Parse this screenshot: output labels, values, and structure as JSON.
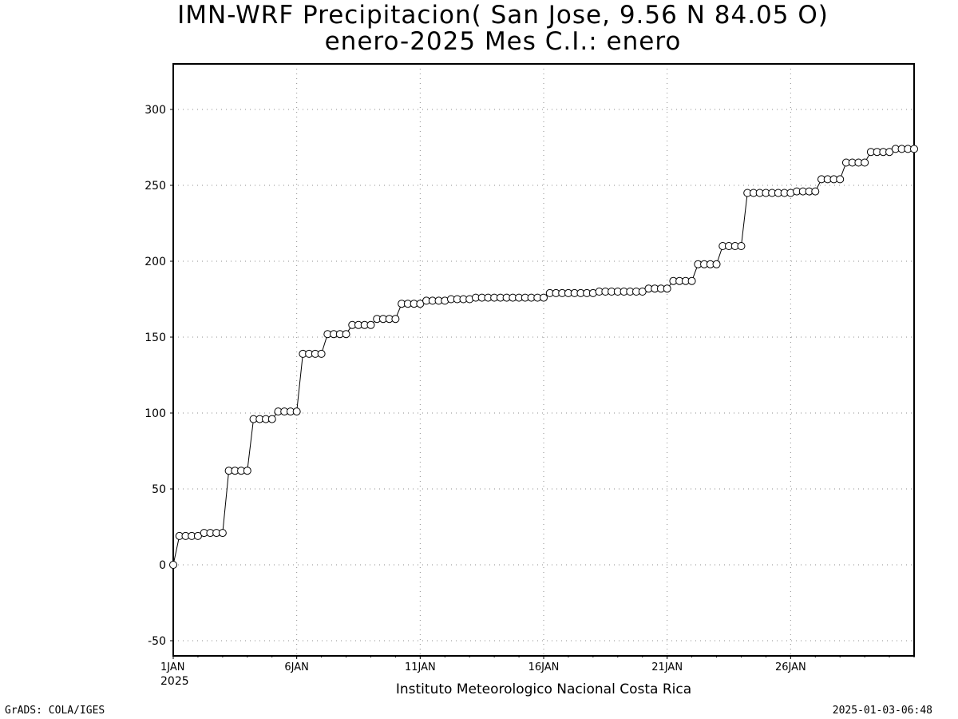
{
  "chart_data": {
    "type": "line",
    "title": "IMN-WRF  Precipitacion( San Jose, 9.56  N 84.05  O)",
    "subtitle": "enero-2025 Mes C.I.: enero",
    "xlabel": "Instituto Meteorologico Nacional Costa Rica",
    "ylabel": "",
    "ylim": [
      -60,
      330
    ],
    "yticks": [
      -50,
      0,
      50,
      100,
      150,
      200,
      250,
      300
    ],
    "xlim": [
      1,
      31
    ],
    "xticks": [
      {
        "day": 1,
        "label": "1JAN",
        "sublabel": "2025"
      },
      {
        "day": 6,
        "label": "6JAN",
        "sublabel": ""
      },
      {
        "day": 11,
        "label": "11JAN",
        "sublabel": ""
      },
      {
        "day": 16,
        "label": "16JAN",
        "sublabel": ""
      },
      {
        "day": 21,
        "label": "21JAN",
        "sublabel": ""
      },
      {
        "day": 26,
        "label": "26JAN",
        "sublabel": ""
      }
    ],
    "grid": true,
    "marker": "open-circle",
    "series": [
      {
        "name": "",
        "x": [
          1.0,
          1.25,
          1.5,
          1.75,
          2.0,
          2.25,
          2.5,
          2.75,
          3.0,
          3.25,
          3.5,
          3.75,
          4.0,
          4.25,
          4.5,
          4.75,
          5.0,
          5.25,
          5.5,
          5.75,
          6.0,
          6.25,
          6.5,
          6.75,
          7.0,
          7.25,
          7.5,
          7.75,
          8.0,
          8.25,
          8.5,
          8.75,
          9.0,
          9.25,
          9.5,
          9.75,
          10.0,
          10.25,
          10.5,
          10.75,
          11.0,
          11.25,
          11.5,
          11.75,
          12.0,
          12.25,
          12.5,
          12.75,
          13.0,
          13.25,
          13.5,
          13.75,
          14.0,
          14.25,
          14.5,
          14.75,
          15.0,
          15.25,
          15.5,
          15.75,
          16.0,
          16.25,
          16.5,
          16.75,
          17.0,
          17.25,
          17.5,
          17.75,
          18.0,
          18.25,
          18.5,
          18.75,
          19.0,
          19.25,
          19.5,
          19.75,
          20.0,
          20.25,
          20.5,
          20.75,
          21.0,
          21.25,
          21.5,
          21.75,
          22.0,
          22.25,
          22.5,
          22.75,
          23.0,
          23.25,
          23.5,
          23.75,
          24.0,
          24.25,
          24.5,
          24.75,
          25.0,
          25.25,
          25.5,
          25.75,
          26.0,
          26.25,
          26.5,
          26.75,
          27.0,
          27.25,
          27.5,
          27.75,
          28.0,
          28.25,
          28.5,
          28.75,
          29.0,
          29.25,
          29.5,
          29.75,
          30.0,
          30.25,
          30.5,
          30.75,
          31.0
        ],
        "y": [
          0,
          19,
          19,
          19,
          19,
          21,
          21,
          21,
          21,
          62,
          62,
          62,
          62,
          96,
          96,
          96,
          96,
          101,
          101,
          101,
          101,
          139,
          139,
          139,
          139,
          152,
          152,
          152,
          152,
          158,
          158,
          158,
          158,
          162,
          162,
          162,
          162,
          172,
          172,
          172,
          172,
          174,
          174,
          174,
          174,
          175,
          175,
          175,
          175,
          176,
          176,
          176,
          176,
          176,
          176,
          176,
          176,
          176,
          176,
          176,
          176,
          179,
          179,
          179,
          179,
          179,
          179,
          179,
          179,
          180,
          180,
          180,
          180,
          180,
          180,
          180,
          180,
          182,
          182,
          182,
          182,
          187,
          187,
          187,
          187,
          198,
          198,
          198,
          198,
          210,
          210,
          210,
          210,
          245,
          245,
          245,
          245,
          245,
          245,
          245,
          245,
          246,
          246,
          246,
          246,
          254,
          254,
          254,
          254,
          265,
          265,
          265,
          265,
          272,
          272,
          272,
          272,
          274,
          274,
          274,
          274
        ]
      }
    ]
  },
  "footer": {
    "left": "GrADS: COLA/IGES",
    "right": "2025-01-03-06:48"
  }
}
